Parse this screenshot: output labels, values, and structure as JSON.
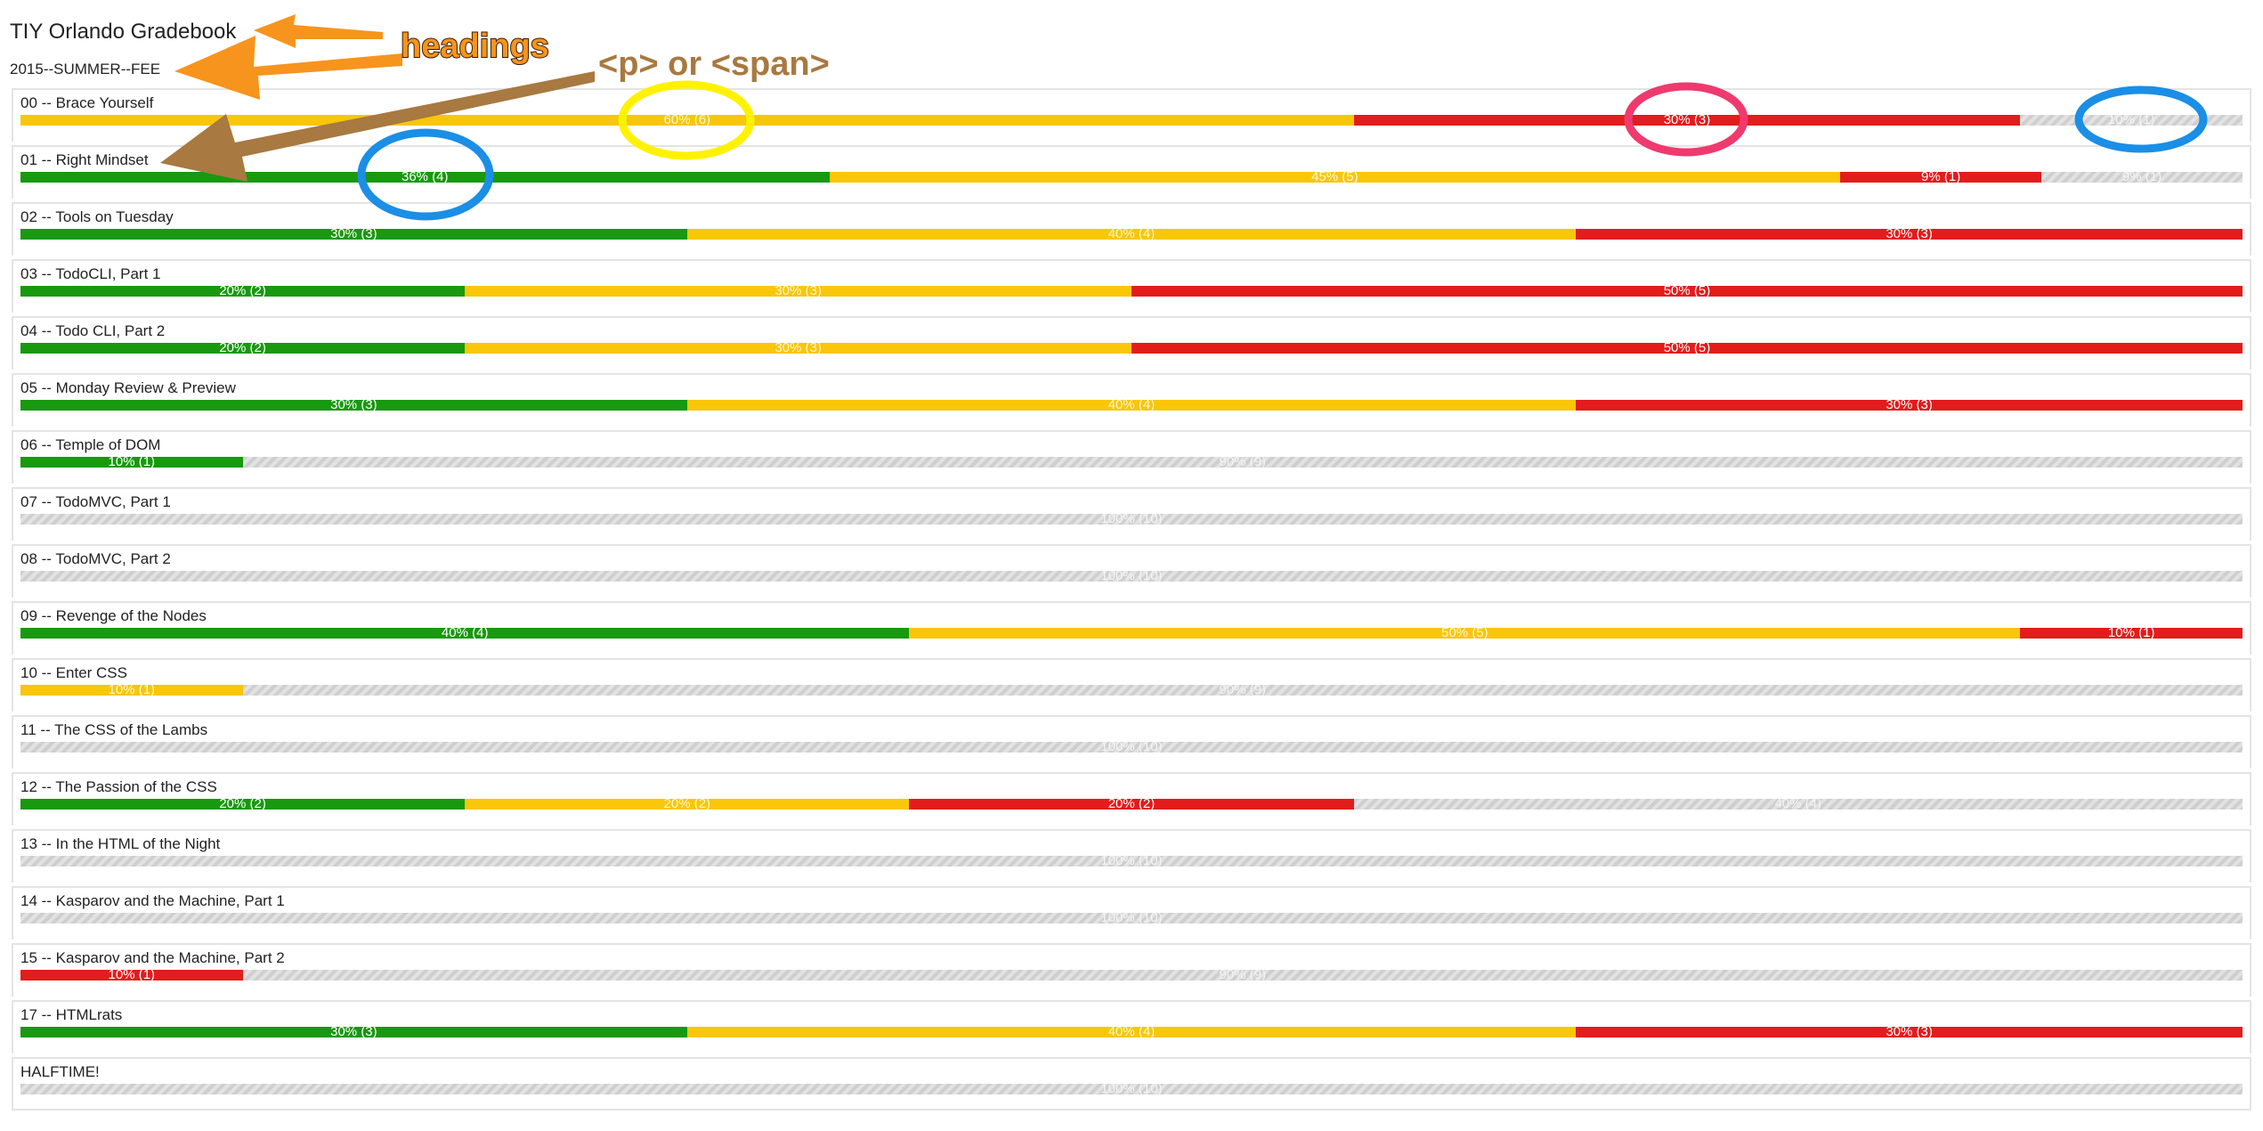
{
  "header": {
    "title": "TIY Orlando Gradebook",
    "subtitle": "2015--SUMMER--FEE"
  },
  "colors": {
    "complete": "#18990f",
    "partial": "#f9c60a",
    "failing": "#e31c1c",
    "unsubmitted": "#d8d8d8"
  },
  "assignments": [
    {
      "title": "00 -- Brace Yourself",
      "segments": [
        {
          "status": "yellow",
          "pct": 60,
          "label": "60% (6)"
        },
        {
          "status": "red",
          "pct": 30,
          "label": "30% (3)"
        },
        {
          "status": "gray",
          "pct": 10,
          "label": "10% (1)"
        }
      ]
    },
    {
      "title": "01 -- Right Mindset",
      "segments": [
        {
          "status": "green",
          "pct": 36.4,
          "label": "36% (4)"
        },
        {
          "status": "yellow",
          "pct": 45.5,
          "label": "45% (5)"
        },
        {
          "status": "red",
          "pct": 9.05,
          "label": "9% (1)"
        },
        {
          "status": "gray",
          "pct": 9.05,
          "label": "9% (1)"
        }
      ]
    },
    {
      "title": "02 -- Tools on Tuesday",
      "segments": [
        {
          "status": "green",
          "pct": 30,
          "label": "30% (3)"
        },
        {
          "status": "yellow",
          "pct": 40,
          "label": "40% (4)"
        },
        {
          "status": "red",
          "pct": 30,
          "label": "30% (3)"
        }
      ]
    },
    {
      "title": "03 -- TodoCLI, Part 1",
      "segments": [
        {
          "status": "green",
          "pct": 20,
          "label": "20% (2)"
        },
        {
          "status": "yellow",
          "pct": 30,
          "label": "30% (3)"
        },
        {
          "status": "red",
          "pct": 50,
          "label": "50% (5)"
        }
      ]
    },
    {
      "title": "04 -- Todo CLI, Part 2",
      "segments": [
        {
          "status": "green",
          "pct": 20,
          "label": "20% (2)"
        },
        {
          "status": "yellow",
          "pct": 30,
          "label": "30% (3)"
        },
        {
          "status": "red",
          "pct": 50,
          "label": "50% (5)"
        }
      ]
    },
    {
      "title": "05 -- Monday Review & Preview",
      "segments": [
        {
          "status": "green",
          "pct": 30,
          "label": "30% (3)"
        },
        {
          "status": "yellow",
          "pct": 40,
          "label": "40% (4)"
        },
        {
          "status": "red",
          "pct": 30,
          "label": "30% (3)"
        }
      ]
    },
    {
      "title": "06 -- Temple of DOM",
      "segments": [
        {
          "status": "green",
          "pct": 10,
          "label": "10% (1)"
        },
        {
          "status": "gray",
          "pct": 90,
          "label": "90% (9)"
        }
      ]
    },
    {
      "title": "07 -- TodoMVC, Part 1",
      "segments": [
        {
          "status": "gray",
          "pct": 100,
          "label": "100% (10)"
        }
      ]
    },
    {
      "title": "08 -- TodoMVC, Part 2",
      "segments": [
        {
          "status": "gray",
          "pct": 100,
          "label": "100% (10)"
        }
      ]
    },
    {
      "title": "09 -- Revenge of the Nodes",
      "segments": [
        {
          "status": "green",
          "pct": 40,
          "label": "40% (4)"
        },
        {
          "status": "yellow",
          "pct": 50,
          "label": "50% (5)"
        },
        {
          "status": "red",
          "pct": 10,
          "label": "10% (1)"
        }
      ]
    },
    {
      "title": "10 -- Enter CSS",
      "segments": [
        {
          "status": "yellow",
          "pct": 10,
          "label": "10% (1)"
        },
        {
          "status": "gray",
          "pct": 90,
          "label": "90% (9)"
        }
      ]
    },
    {
      "title": "11 -- The CSS of the Lambs",
      "segments": [
        {
          "status": "gray",
          "pct": 100,
          "label": "100% (10)"
        }
      ]
    },
    {
      "title": "12 -- The Passion of the CSS",
      "segments": [
        {
          "status": "green",
          "pct": 20,
          "label": "20% (2)"
        },
        {
          "status": "yellow",
          "pct": 20,
          "label": "20% (2)"
        },
        {
          "status": "red",
          "pct": 20,
          "label": "20% (2)"
        },
        {
          "status": "gray",
          "pct": 40,
          "label": "40% (4)"
        }
      ]
    },
    {
      "title": "13 -- In the HTML of the Night",
      "segments": [
        {
          "status": "gray",
          "pct": 100,
          "label": "100% (10)"
        }
      ]
    },
    {
      "title": "14 -- Kasparov and the Machine, Part 1",
      "segments": [
        {
          "status": "gray",
          "pct": 100,
          "label": "100% (10)"
        }
      ]
    },
    {
      "title": "15 -- Kasparov and the Machine, Part 2",
      "segments": [
        {
          "status": "red",
          "pct": 10,
          "label": "10% (1)"
        },
        {
          "status": "gray",
          "pct": 90,
          "label": "90% (9)"
        }
      ]
    },
    {
      "title": "17 -- HTMLrats",
      "segments": [
        {
          "status": "green",
          "pct": 30,
          "label": "30% (3)"
        },
        {
          "status": "yellow",
          "pct": 40,
          "label": "40% (4)"
        },
        {
          "status": "red",
          "pct": 30,
          "label": "30% (3)"
        }
      ]
    },
    {
      "title": "HALFTIME!",
      "segments": [
        {
          "status": "gray",
          "pct": 100,
          "label": "100% (10)"
        }
      ]
    }
  ],
  "annotations": {
    "headings_label": "headings",
    "p_span_label": "<p> or <span>",
    "headings_color": "#f7941d",
    "p_span_color": "#a87940",
    "circle_colors": {
      "yellow": "#fff200",
      "pink": "#ef3a6e",
      "blue": "#1b8ee6"
    }
  }
}
